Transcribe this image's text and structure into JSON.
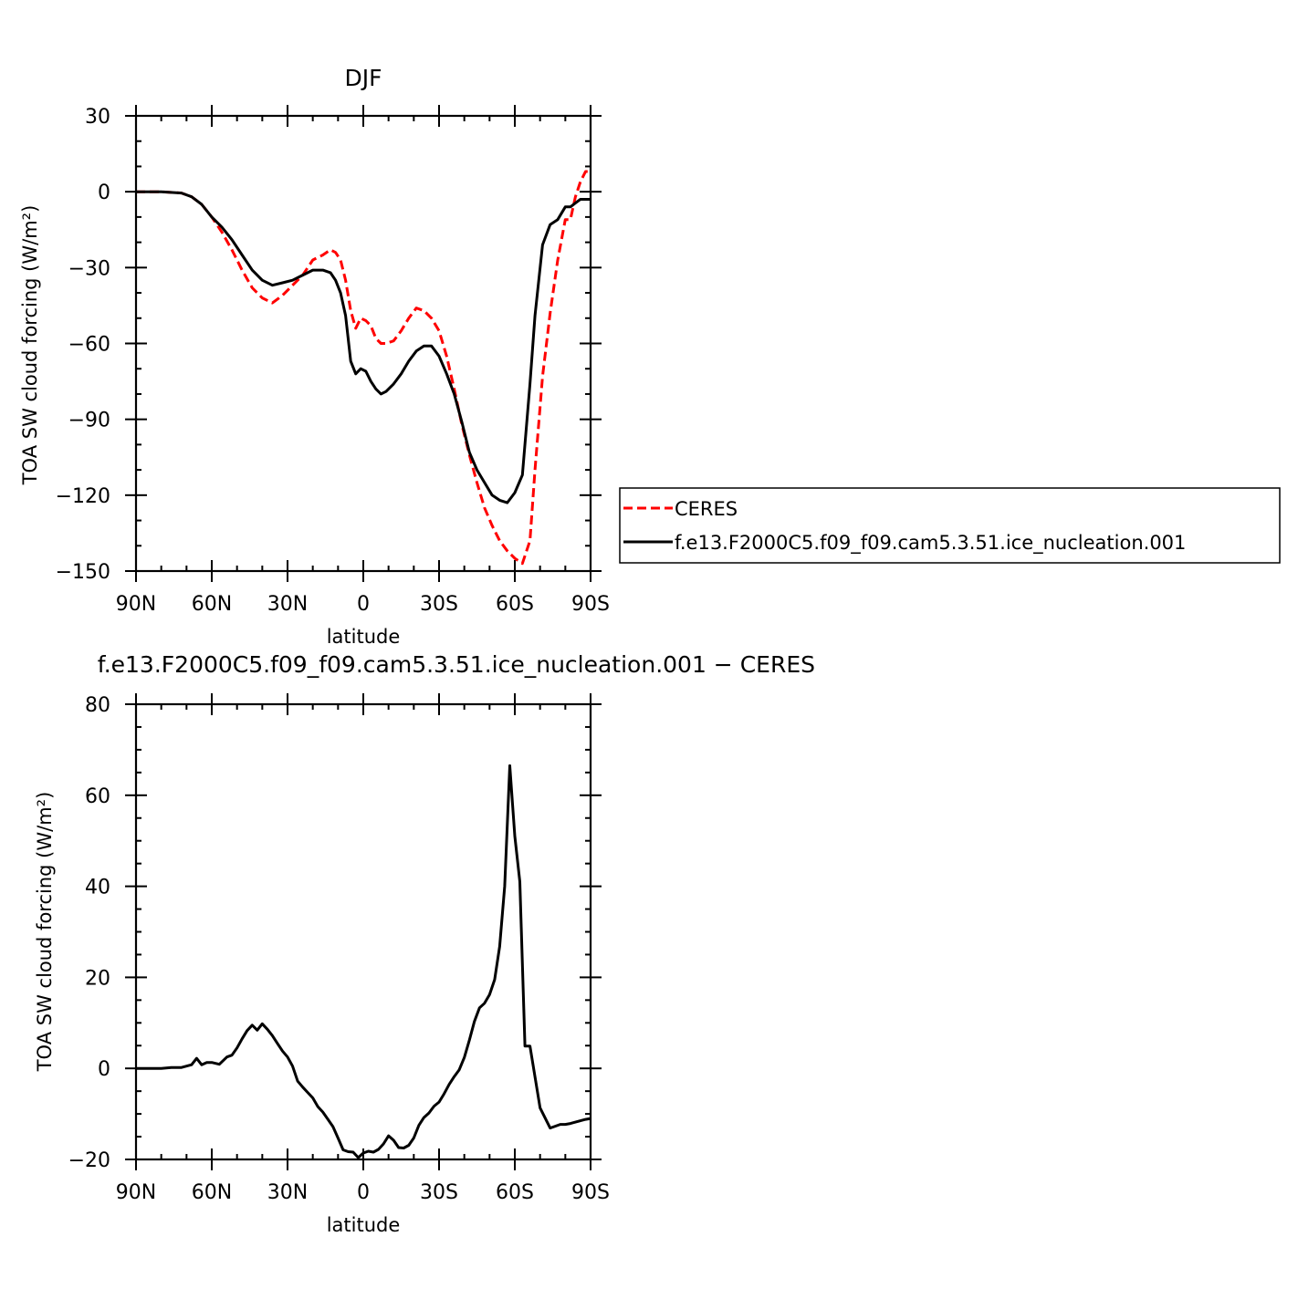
{
  "chart_data": [
    {
      "type": "line",
      "title": "DJF",
      "xlabel": "latitude",
      "ylabel": "TOA SW cloud forcing (W/m²)",
      "xticks": [
        "90N",
        "60N",
        "30N",
        "0",
        "30S",
        "60S",
        "90S"
      ],
      "yticks": [
        "30",
        "0",
        "−30",
        "−60",
        "−90",
        "−120",
        "−150"
      ],
      "xlim": [
        -90,
        90
      ],
      "ylim": [
        -150,
        30
      ],
      "legend": {
        "placement": "right"
      },
      "series": [
        {
          "name": "CERES",
          "color": "#ff0000",
          "dash": "dashed",
          "x": [
            -90,
            -80,
            -72,
            -68,
            -64,
            -60,
            -56,
            -52,
            -48,
            -44,
            -40,
            -36,
            -32,
            -28,
            -24,
            -20,
            -16,
            -13,
            -11,
            -9,
            -7,
            -5,
            -3,
            -1,
            1,
            3,
            5,
            7,
            9,
            12,
            15,
            18,
            21,
            24,
            27,
            30,
            33,
            36,
            39,
            42,
            45,
            48,
            51,
            54,
            57,
            60,
            63,
            66,
            68,
            71,
            74,
            77,
            80,
            82,
            84,
            86,
            88,
            90
          ],
          "y": [
            0,
            0,
            -0.5,
            -2,
            -5,
            -10,
            -16,
            -23,
            -31,
            -38,
            -42,
            -44,
            -41,
            -37,
            -33,
            -27,
            -25,
            -23,
            -24,
            -27,
            -35,
            -47,
            -54,
            -50,
            -51,
            -53,
            -58,
            -60,
            -60,
            -59,
            -55,
            -50,
            -46,
            -47,
            -50,
            -55,
            -65,
            -78,
            -92,
            -104,
            -115,
            -125,
            -132,
            -138,
            -142,
            -145,
            -147,
            -138,
            -110,
            -73,
            -48,
            -27,
            -11,
            -11,
            -2,
            4,
            8,
            8
          ]
        },
        {
          "name": "f.e13.F2000C5.f09_f09.cam5.3.51.ice_nucleation.001",
          "color": "#000000",
          "dash": "solid",
          "x": [
            -90,
            -80,
            -72,
            -68,
            -64,
            -60,
            -56,
            -52,
            -48,
            -44,
            -40,
            -36,
            -32,
            -28,
            -24,
            -20,
            -16,
            -13,
            -11,
            -9,
            -7,
            -5,
            -3,
            -1,
            1,
            3,
            5,
            7,
            9,
            12,
            15,
            18,
            21,
            24,
            27,
            30,
            33,
            36,
            39,
            42,
            45,
            48,
            51,
            54,
            57,
            60,
            63,
            66,
            68,
            71,
            74,
            77,
            80,
            82,
            84,
            86,
            88,
            90
          ],
          "y": [
            0,
            0,
            -0.5,
            -2,
            -5,
            -10,
            -14,
            -19,
            -25,
            -31,
            -35,
            -37,
            -36,
            -35,
            -33,
            -31,
            -31,
            -32,
            -35,
            -40,
            -49,
            -67,
            -72,
            -70,
            -71,
            -75,
            -78,
            -80,
            -79,
            -76,
            -72,
            -67,
            -63,
            -61,
            -61,
            -65,
            -72,
            -80,
            -91,
            -103,
            -110,
            -115,
            -120,
            -122,
            -123,
            -119,
            -112,
            -76,
            -49,
            -21,
            -13,
            -11,
            -6,
            -6,
            -4.5,
            -3,
            -3,
            -3
          ]
        }
      ]
    },
    {
      "type": "line",
      "title": "f.e13.F2000C5.f09_f09.cam5.3.51.ice_nucleation.001 − CERES",
      "xlabel": "latitude",
      "ylabel": "TOA SW cloud forcing (W/m²)",
      "xticks": [
        "90N",
        "60N",
        "30N",
        "0",
        "30S",
        "60S",
        "90S"
      ],
      "yticks": [
        "80",
        "60",
        "40",
        "20",
        "0",
        "−20"
      ],
      "xlim": [
        -90,
        90
      ],
      "ylim": [
        -20,
        80
      ],
      "series": [
        {
          "color": "#000000",
          "dash": "solid",
          "x": [
            -90,
            -80,
            -76,
            -72,
            -68,
            -66,
            -64,
            -62,
            -60,
            -57,
            -54,
            -52,
            -50,
            -48,
            -46,
            -44,
            -42,
            -40,
            -38,
            -36,
            -34,
            -32,
            -30,
            -28,
            -26,
            -24,
            -22,
            -20,
            -18,
            -16,
            -14,
            -12,
            -10,
            -8,
            -6,
            -4,
            -2,
            0,
            2,
            4,
            6,
            8,
            10,
            12,
            14,
            16,
            18,
            20,
            22,
            24,
            26,
            28,
            30,
            32,
            34,
            36,
            38,
            40,
            42,
            44,
            46,
            48,
            50,
            52,
            54,
            56,
            58,
            60,
            62,
            64,
            66,
            70,
            74,
            78,
            80,
            82,
            84,
            86,
            88,
            90
          ],
          "y": [
            0,
            0,
            0.2,
            0.2,
            0.8,
            2.2,
            0.8,
            1.3,
            1.3,
            0.9,
            2.5,
            2.9,
            4.5,
            6.5,
            8.3,
            9.5,
            8.4,
            9.8,
            8.6,
            7.2,
            5.5,
            3.8,
            2.5,
            0.5,
            -2.8,
            -4.1,
            -5.3,
            -6.5,
            -8.4,
            -9.6,
            -11.2,
            -12.8,
            -15.3,
            -17.9,
            -18.3,
            -18.4,
            -19.6,
            -18.6,
            -18.2,
            -18.4,
            -17.8,
            -16.6,
            -14.8,
            -15.8,
            -17.4,
            -17.5,
            -16.9,
            -15.3,
            -12.5,
            -10.8,
            -9.8,
            -8.3,
            -7.4,
            -5.6,
            -3.5,
            -1.8,
            -0.3,
            2.4,
            6.2,
            10.3,
            13.3,
            14.3,
            16.2,
            19.5,
            26.8,
            40,
            66.5,
            51,
            41,
            4.9,
            4.9,
            -8.7,
            -13.1,
            -12.3,
            -12.3,
            -12.1,
            -11.8,
            -11.5,
            -11.2,
            -11
          ]
        }
      ]
    }
  ]
}
